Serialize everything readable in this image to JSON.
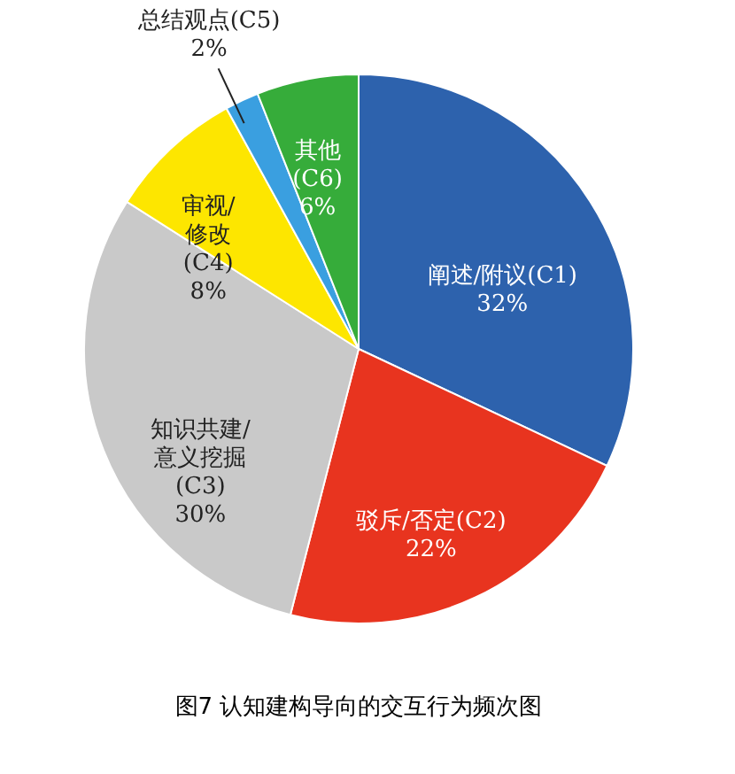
{
  "chart_data": {
    "type": "pie",
    "title": "图7  认知建构导向的交互行为频次图",
    "categories": [
      "阐述/附议(C1)",
      "驳斥/否定(C2)",
      "知识共建/\n意义挖掘\n(C3)",
      "审视/\n修改\n(C4)",
      "总结观点(C5)",
      "其他\n(C6)"
    ],
    "values": [
      32,
      22,
      30,
      8,
      2,
      6
    ],
    "colors": [
      "#2d62ad",
      "#e8341f",
      "#c9c9c9",
      "#fde600",
      "#3a9fe0",
      "#36ac3a"
    ],
    "value_labels": [
      "32%",
      "22%",
      "30%",
      "8%",
      "2%",
      "6%"
    ]
  }
}
